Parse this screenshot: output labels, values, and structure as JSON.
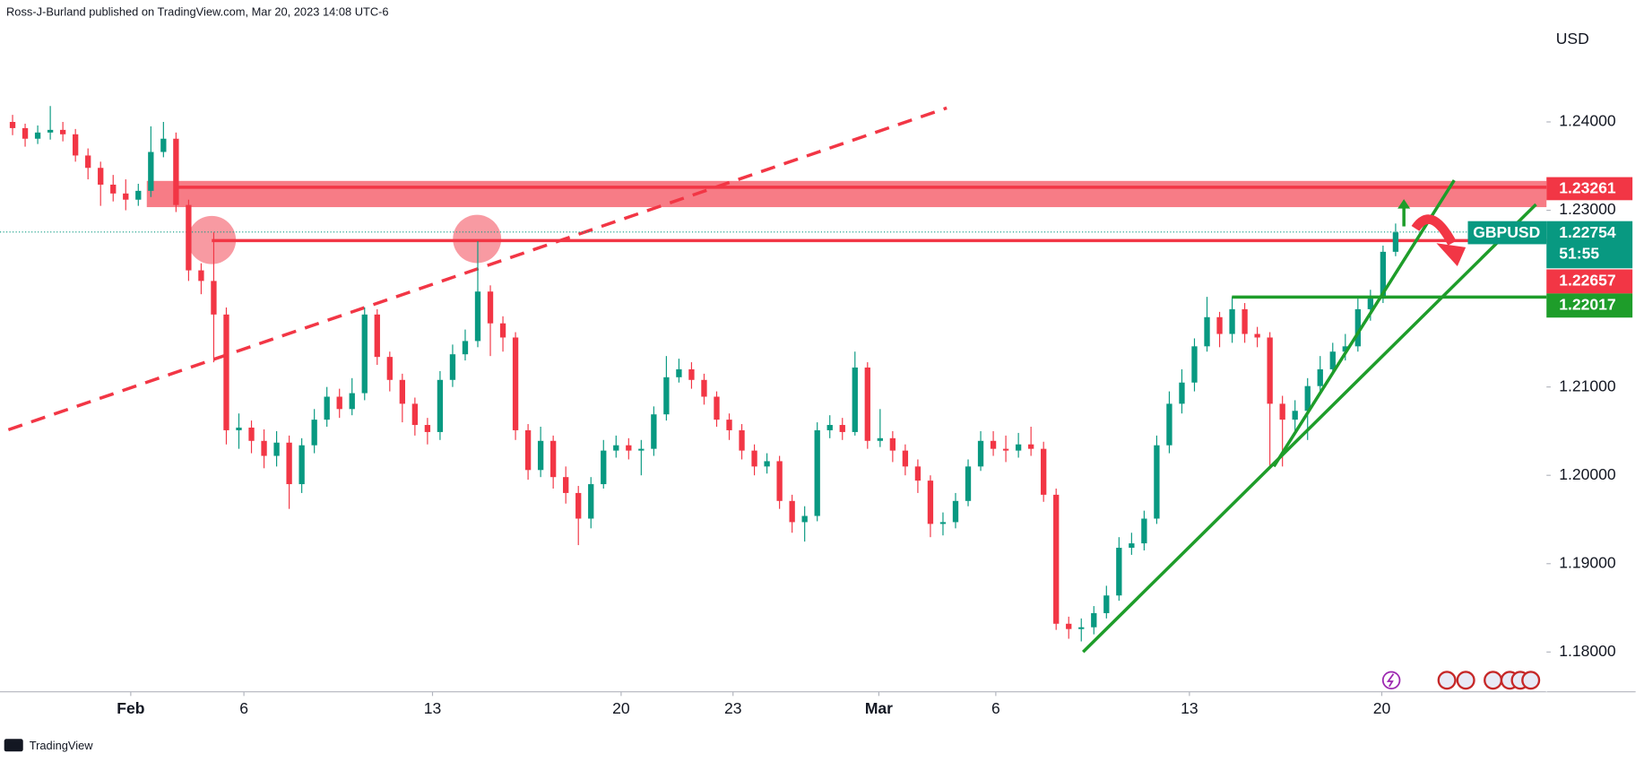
{
  "chart_data": {
    "type": "candlestick",
    "header": "Ross-J-Burland published on TradingView.com, Mar 20, 2023 14:08 UTC-6",
    "currency": "USD",
    "symbol": "GBPUSD",
    "countdown": "51:55",
    "brand": "TradingView",
    "up_color": "#089981",
    "down_color": "#f23645",
    "ylim": [
      1.1755,
      1.2538
    ],
    "xlim": [
      -1,
      122
    ],
    "yticks": [
      {
        "value": 1.24,
        "label": "1.24000"
      },
      {
        "value": 1.23,
        "label": "1.23000"
      },
      {
        "value": 1.21,
        "label": "1.21000"
      },
      {
        "value": 1.2,
        "label": "1.20000"
      },
      {
        "value": 1.19,
        "label": "1.19000"
      },
      {
        "value": 1.18,
        "label": "1.18000"
      }
    ],
    "xticks": [
      {
        "value": 9.4,
        "label": "Feb"
      },
      {
        "value": 18.4,
        "label": "6"
      },
      {
        "value": 33.4,
        "label": "13"
      },
      {
        "value": 48.4,
        "label": "20"
      },
      {
        "value": 57.3,
        "label": "23"
      },
      {
        "value": 68.9,
        "label": "Mar"
      },
      {
        "value": 78.2,
        "label": "6"
      },
      {
        "value": 93.6,
        "label": "13"
      },
      {
        "value": 108.9,
        "label": "20"
      }
    ],
    "price_labels": [
      {
        "value": 1.23261,
        "label": "1.23261",
        "color": "#f23645"
      },
      {
        "value": 1.22754,
        "label": "1.22754",
        "color": "#089981"
      },
      {
        "value": 1.22657,
        "label": "1.22657",
        "color": "#f23645"
      },
      {
        "value": 1.22017,
        "label": "1.22017",
        "color": "#1e9d2a"
      }
    ],
    "candles": [
      [
        1.24,
        1.2408,
        1.2385,
        1.2393
      ],
      [
        1.2393,
        1.2398,
        1.2372,
        1.2381
      ],
      [
        1.2381,
        1.2396,
        1.2375,
        1.2388
      ],
      [
        1.2388,
        1.2418,
        1.238,
        1.2391
      ],
      [
        1.2391,
        1.24,
        1.2378,
        1.2386
      ],
      [
        1.2386,
        1.2392,
        1.2355,
        1.2362
      ],
      [
        1.2362,
        1.237,
        1.2335,
        1.2348
      ],
      [
        1.2348,
        1.2355,
        1.2305,
        1.2329
      ],
      [
        1.2329,
        1.234,
        1.231,
        1.2319
      ],
      [
        1.2319,
        1.2335,
        1.23,
        1.2312
      ],
      [
        1.2312,
        1.233,
        1.2305,
        1.2322
      ],
      [
        1.2322,
        1.2395,
        1.2315,
        1.2366
      ],
      [
        1.2366,
        1.24,
        1.236,
        1.2381
      ],
      [
        1.2381,
        1.2388,
        1.2298,
        1.2306
      ],
      [
        1.2306,
        1.2312,
        1.222,
        1.2232
      ],
      [
        1.2232,
        1.224,
        1.2205,
        1.222
      ],
      [
        1.222,
        1.2275,
        1.2128,
        1.2182
      ],
      [
        1.2182,
        1.219,
        1.2035,
        1.2051
      ],
      [
        1.2051,
        1.207,
        1.203,
        1.2054
      ],
      [
        1.2054,
        1.2062,
        1.2025,
        1.2039
      ],
      [
        1.2039,
        1.2052,
        1.2008,
        1.2022
      ],
      [
        1.2022,
        1.205,
        1.201,
        1.2037
      ],
      [
        1.2037,
        1.2045,
        1.1962,
        1.199
      ],
      [
        1.199,
        1.2042,
        1.198,
        1.2034
      ],
      [
        1.2034,
        1.2075,
        1.2025,
        1.2063
      ],
      [
        1.2063,
        1.21,
        1.2055,
        1.2089
      ],
      [
        1.2089,
        1.2098,
        1.2065,
        1.2075
      ],
      [
        1.2075,
        1.211,
        1.2068,
        1.2093
      ],
      [
        1.2093,
        1.219,
        1.2085,
        1.2182
      ],
      [
        1.2182,
        1.2188,
        1.2125,
        1.2134
      ],
      [
        1.2134,
        1.214,
        1.2095,
        1.2108
      ],
      [
        1.2108,
        1.2115,
        1.206,
        1.2081
      ],
      [
        1.2081,
        1.2088,
        1.2045,
        1.2057
      ],
      [
        1.2057,
        1.2065,
        1.2035,
        1.2049
      ],
      [
        1.2049,
        1.2118,
        1.204,
        1.2108
      ],
      [
        1.2108,
        1.2148,
        1.21,
        1.2137
      ],
      [
        1.2137,
        1.2165,
        1.213,
        1.2152
      ],
      [
        1.2152,
        1.2265,
        1.2145,
        1.2208
      ],
      [
        1.2208,
        1.2215,
        1.2135,
        1.2172
      ],
      [
        1.2172,
        1.218,
        1.214,
        1.2156
      ],
      [
        1.2156,
        1.2162,
        1.204,
        1.2051
      ],
      [
        1.2051,
        1.2058,
        1.1995,
        1.2006
      ],
      [
        1.2006,
        1.2055,
        1.1998,
        1.2039
      ],
      [
        1.2039,
        1.2045,
        1.1985,
        1.1998
      ],
      [
        1.1998,
        1.201,
        1.1968,
        1.198
      ],
      [
        1.198,
        1.1988,
        1.1921,
        1.1951
      ],
      [
        1.1951,
        1.1998,
        1.194,
        1.199
      ],
      [
        1.199,
        1.204,
        1.1985,
        1.2028
      ],
      [
        1.2028,
        1.2045,
        1.202,
        1.2034
      ],
      [
        1.2034,
        1.2042,
        1.2018,
        1.2028
      ],
      [
        1.2028,
        1.204,
        1.2,
        1.203
      ],
      [
        1.203,
        1.2078,
        1.2022,
        1.2069
      ],
      [
        1.2069,
        1.2135,
        1.2062,
        1.2111
      ],
      [
        1.2111,
        1.2132,
        1.2105,
        1.212
      ],
      [
        1.212,
        1.2128,
        1.2098,
        1.2108
      ],
      [
        1.2108,
        1.2115,
        1.208,
        1.2089
      ],
      [
        1.2089,
        1.2095,
        1.2055,
        1.2063
      ],
      [
        1.2063,
        1.207,
        1.204,
        1.2051
      ],
      [
        1.2051,
        1.2058,
        1.2018,
        1.2028
      ],
      [
        1.2028,
        1.2035,
        1.2,
        1.201
      ],
      [
        1.201,
        1.2025,
        1.2002,
        1.2016
      ],
      [
        1.2016,
        1.2022,
        1.1962,
        1.1971
      ],
      [
        1.1971,
        1.1978,
        1.1935,
        1.1947
      ],
      [
        1.1947,
        1.1965,
        1.1925,
        1.1954
      ],
      [
        1.1954,
        1.206,
        1.1948,
        1.2051
      ],
      [
        1.2051,
        1.2068,
        1.2042,
        1.2057
      ],
      [
        1.2057,
        1.2065,
        1.204,
        1.2049
      ],
      [
        1.2049,
        1.214,
        1.2045,
        1.2122
      ],
      [
        1.2122,
        1.2128,
        1.203,
        1.2039
      ],
      [
        1.2039,
        1.2075,
        1.2032,
        1.2042
      ],
      [
        1.2042,
        1.205,
        1.2015,
        1.2028
      ],
      [
        1.2028,
        1.2035,
        1.2,
        1.201
      ],
      [
        1.201,
        1.2018,
        1.198,
        1.1994
      ],
      [
        1.1994,
        1.2,
        1.193,
        1.1945
      ],
      [
        1.1945,
        1.1958,
        1.1932,
        1.1947
      ],
      [
        1.1947,
        1.198,
        1.194,
        1.1971
      ],
      [
        1.1971,
        1.2018,
        1.1965,
        1.201
      ],
      [
        1.201,
        1.205,
        1.2005,
        1.2039
      ],
      [
        1.2039,
        1.205,
        1.2022,
        1.203
      ],
      [
        1.203,
        1.2045,
        1.2015,
        1.2028
      ],
      [
        1.2028,
        1.2048,
        1.202,
        1.2035
      ],
      [
        1.2035,
        1.2055,
        1.2022,
        1.203
      ],
      [
        1.203,
        1.2038,
        1.197,
        1.1978
      ],
      [
        1.1978,
        1.1985,
        1.1825,
        1.1832
      ],
      [
        1.1832,
        1.184,
        1.1815,
        1.1826
      ],
      [
        1.1826,
        1.1838,
        1.1812,
        1.1828
      ],
      [
        1.1828,
        1.1852,
        1.182,
        1.1844
      ],
      [
        1.1844,
        1.1875,
        1.1838,
        1.1864
      ],
      [
        1.1864,
        1.193,
        1.1858,
        1.1918
      ],
      [
        1.1918,
        1.1935,
        1.191,
        1.1923
      ],
      [
        1.1923,
        1.196,
        1.1915,
        1.1951
      ],
      [
        1.1951,
        1.2045,
        1.1945,
        1.2034
      ],
      [
        1.2034,
        1.2095,
        1.2025,
        1.2081
      ],
      [
        1.2081,
        1.212,
        1.207,
        1.2105
      ],
      [
        1.2105,
        1.2155,
        1.2095,
        1.2146
      ],
      [
        1.2146,
        1.2202,
        1.214,
        1.2179
      ],
      [
        1.2179,
        1.2185,
        1.2145,
        1.216
      ],
      [
        1.216,
        1.2202,
        1.215,
        1.2188
      ],
      [
        1.2188,
        1.2195,
        1.215,
        1.216
      ],
      [
        1.216,
        1.2168,
        1.2145,
        1.2156
      ],
      [
        1.2156,
        1.2162,
        1.201,
        1.2081
      ],
      [
        1.2081,
        1.209,
        1.201,
        1.2063
      ],
      [
        1.2063,
        1.2085,
        1.205,
        1.2073
      ],
      [
        1.2073,
        1.211,
        1.204,
        1.2101
      ],
      [
        1.2101,
        1.2135,
        1.2095,
        1.212
      ],
      [
        1.212,
        1.215,
        1.2115,
        1.214
      ],
      [
        1.214,
        1.216,
        1.213,
        1.2146
      ],
      [
        1.2146,
        1.22,
        1.214,
        1.2188
      ],
      [
        1.2188,
        1.221,
        1.2175,
        1.22
      ],
      [
        1.22,
        1.226,
        1.2195,
        1.2253
      ],
      [
        1.2253,
        1.2285,
        1.2248,
        1.2275
      ]
    ]
  }
}
